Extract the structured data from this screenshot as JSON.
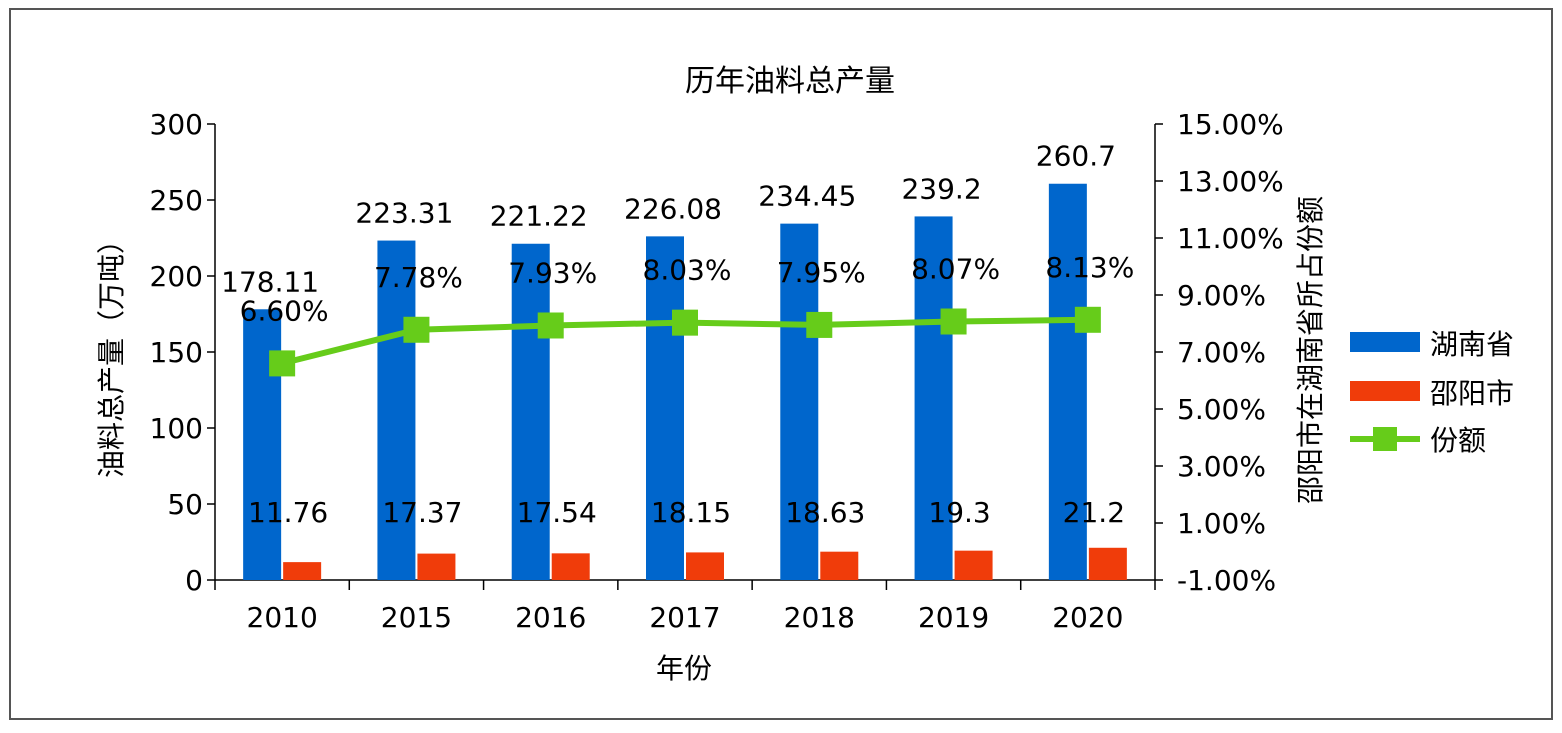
{
  "chart_data": {
    "type": "bar",
    "title": "历年油料总产量",
    "xlabel": "年份",
    "ylabel": "油料总产量（万吨）",
    "y2label": "邵阳市在湖南省所占份额",
    "categories": [
      "2010",
      "2015",
      "2016",
      "2017",
      "2018",
      "2019",
      "2020"
    ],
    "ylim": [
      0,
      300
    ],
    "yticks": [
      "0",
      "50",
      "100",
      "150",
      "200",
      "250",
      "300"
    ],
    "y2lim": [
      -1.0,
      15.0
    ],
    "y2ticks": [
      "-1.00%",
      "1.00%",
      "3.00%",
      "5.00%",
      "7.00%",
      "9.00%",
      "11.00%",
      "13.00%",
      "15.00%"
    ],
    "legend_position": "right",
    "grid": false,
    "series": [
      {
        "name": "湖南省",
        "type": "bar",
        "axis": "left",
        "color": "#0066CC",
        "values": [
          178.11,
          223.31,
          221.22,
          226.08,
          234.45,
          239.2,
          260.7
        ],
        "labels": [
          "178.11",
          "223.31",
          "221.22",
          "226.08",
          "234.45",
          "239.2",
          "260.7"
        ]
      },
      {
        "name": "邵阳市",
        "type": "bar",
        "axis": "left",
        "color": "#F03C0A",
        "values": [
          11.76,
          17.37,
          17.54,
          18.15,
          18.63,
          19.3,
          21.2
        ],
        "labels": [
          "11.76",
          "17.37",
          "17.54",
          "18.15",
          "18.63",
          "19.3",
          "21.2"
        ]
      },
      {
        "name": "份额",
        "type": "line",
        "axis": "right",
        "color": "#66CC1A",
        "values": [
          6.6,
          7.78,
          7.93,
          8.03,
          7.95,
          8.07,
          8.13
        ],
        "labels": [
          "6.60%",
          "7.78%",
          "7.93%",
          "8.03%",
          "7.95%",
          "8.07%",
          "8.13%"
        ]
      }
    ]
  }
}
